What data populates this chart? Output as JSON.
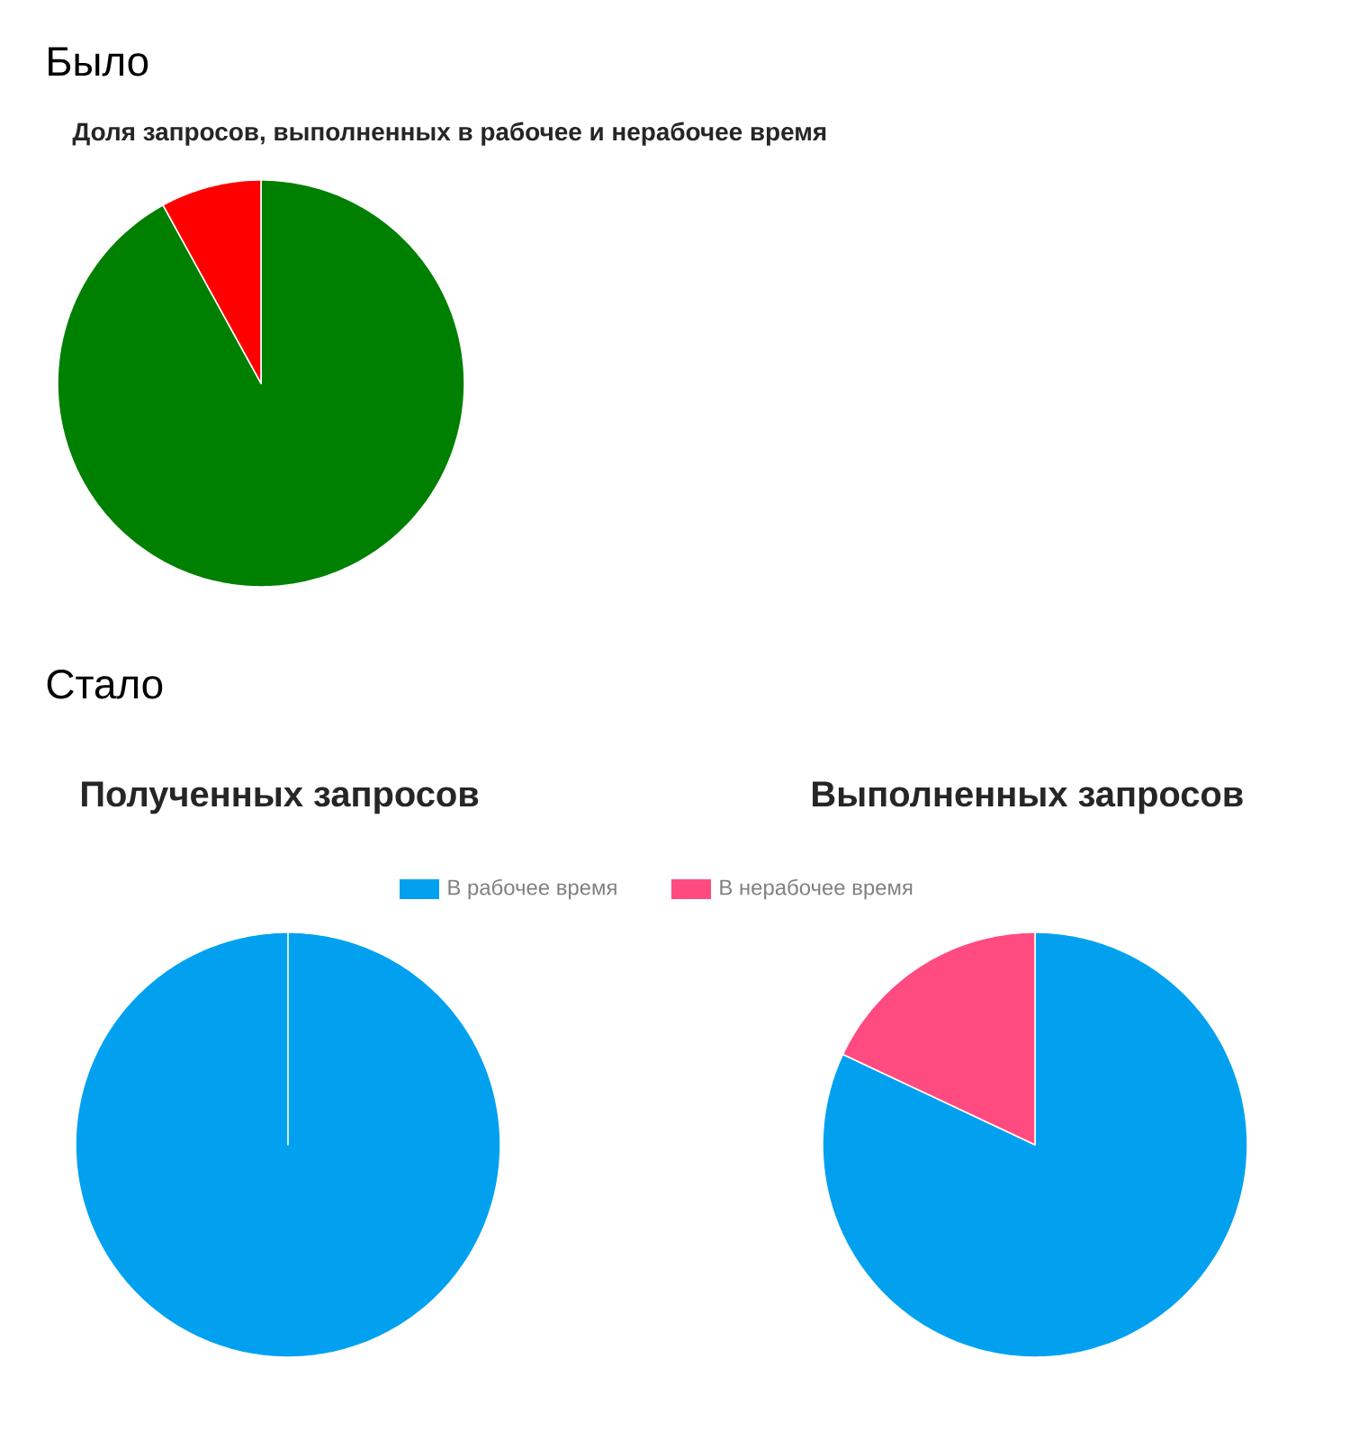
{
  "chart_data": [
    {
      "type": "pie",
      "title": "Доля запросов, выполненных в рабочее и нерабочее время",
      "categories": [
        null,
        null
      ],
      "values": [
        92,
        8
      ],
      "colors": [
        "#008000",
        "#ff0000"
      ],
      "annotations": [
        "Было"
      ]
    },
    {
      "type": "pie",
      "title": "Полученных запросов",
      "categories": [
        "В рабочее время",
        "В нерабочее время"
      ],
      "values": [
        100,
        0
      ],
      "colors": [
        "#02a1f0",
        "#ff4b80"
      ],
      "legend": "top",
      "annotations": [
        "Стало"
      ]
    },
    {
      "type": "pie",
      "title": "Выполненных запросов",
      "categories": [
        null,
        null
      ],
      "values": [
        82,
        18
      ],
      "colors": [
        "#02a1f0",
        "#ff4b80"
      ]
    }
  ]
}
